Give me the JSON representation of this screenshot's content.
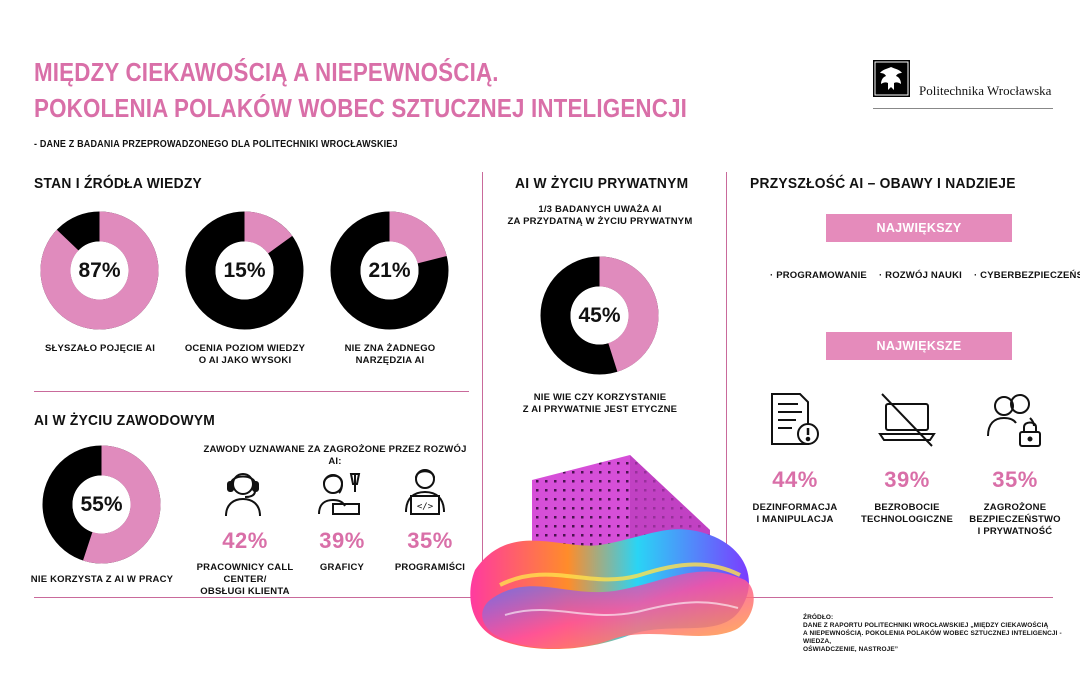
{
  "header": {
    "title_line1": "MIĘDZY CIEKAWOŚCIĄ A NIEPEWNOŚCIĄ.",
    "title_line2": "POKOLENIA POLAKÓW WOBEC SZTUCZNEJ INTELIGENCJI",
    "subtitle": "- DANE Z BADANIA PRZEPROWADZONEGO DLA POLITECHNIKI WROCŁAWSKIEJ",
    "logo_text": "Politechnika Wrocławska"
  },
  "colors": {
    "accent": "#d96fa8",
    "donut_pink": "#e08bbd",
    "donut_dark": "#000000",
    "rule": "#c96a9b"
  },
  "knowledge": {
    "heading": "STAN I ŹRÓDŁA WIEDZY",
    "items": [
      {
        "percent": 87,
        "label": "87%",
        "caption": "SŁYSZAŁO POJĘCIE AI"
      },
      {
        "percent": 15,
        "label": "15%",
        "caption": "OCENIA POZIOM WIEDZY\nO AI JAKO WYSOKI"
      },
      {
        "percent": 21,
        "label": "21%",
        "caption": "NIE ZNA ŻADNEGO\nNARZĘDZIA AI"
      }
    ]
  },
  "work": {
    "heading": "AI W ŻYCIU ZAWODOWYM",
    "donut": {
      "percent": 55,
      "label": "55%",
      "caption": "NIE KORZYSTA Z AI W PRACY"
    },
    "jobs_heading": "ZAWODY UZNAWANE ZA ZAGROŻONE PRZEZ ROZWÓJ AI:",
    "jobs": [
      {
        "icon": "call-center-headset-icon",
        "value": "42%",
        "label": "PRACOWNICY CALL CENTER/\nOBSŁUGI KLIENTA"
      },
      {
        "icon": "graphic-designer-icon",
        "value": "39%",
        "label": "GRAFICY"
      },
      {
        "icon": "programmer-icon",
        "value": "35%",
        "label": "PROGRAMIŚCI"
      }
    ]
  },
  "private": {
    "heading": "AI W ŻYCIU PRYWATNYM",
    "intro": "1/3 BADANYCH UWAŻA AI\nZA PRZYDATNĄ W ŻYCIU PRYWATNYM",
    "donut": {
      "percent": 45,
      "label": "45%",
      "caption": "NIE WIE CZY KORZYSTANIE\nZ AI PRYWATNIE JEST ETYCZNE"
    }
  },
  "future": {
    "heading": "PRZYSZŁOŚĆ AI – OBAWY I NADZIEJE",
    "potential_label": "NAJWIĘKSZY POTENCJAŁ",
    "potential_items": [
      "· PROGRAMOWANIE",
      "· ROZWÓJ NAUKI",
      "· CYBERBEZPIECZEŃSTWO"
    ],
    "threats_label": "NAJWIĘKSZE ZAGROŻENIA",
    "threats": [
      {
        "icon": "document-warning-icon",
        "value": "44%",
        "label": "DEZINFORMACJA\nI MANIPULACJA"
      },
      {
        "icon": "crossed-laptop-icon",
        "value": "39%",
        "label": "BEZROBOCIE\nTECHNOLOGICZNE"
      },
      {
        "icon": "people-lock-icon",
        "value": "35%",
        "label": "ZAGROŻONE\nBEZPIECZEŃSTWO\nI PRYWATNOŚĆ"
      }
    ]
  },
  "source": {
    "label": "ŹRÓDŁO:",
    "text": "DANE Z RAPORTU POLITECHNIKI WROCŁAWSKIEJ „MIĘDZY CIEKAWOŚCIĄ\nA NIEPEWNOŚCIĄ. POKOLENIA POLAKÓW WOBEC SZTUCZNEJ INTELIGENCJI - WIEDZA,\nOŚWIADCZENIE, NASTROJE”"
  }
}
